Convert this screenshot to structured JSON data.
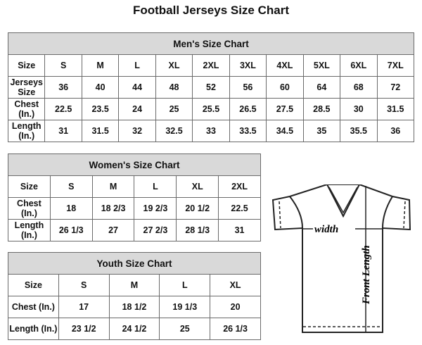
{
  "title": "Football Jerseys Size Chart",
  "men": {
    "caption": "Men's Size Chart",
    "rows": [
      [
        "Size",
        "S",
        "M",
        "L",
        "XL",
        "2XL",
        "3XL",
        "4XL",
        "5XL",
        "6XL",
        "7XL"
      ],
      [
        "Jerseys Size",
        "36",
        "40",
        "44",
        "48",
        "52",
        "56",
        "60",
        "64",
        "68",
        "72"
      ],
      [
        "Chest (In.)",
        "22.5",
        "23.5",
        "24",
        "25",
        "25.5",
        "26.5",
        "27.5",
        "28.5",
        "30",
        "31.5"
      ],
      [
        "Length (In.)",
        "31",
        "31.5",
        "32",
        "32.5",
        "33",
        "33.5",
        "34.5",
        "35",
        "35.5",
        "36"
      ]
    ]
  },
  "women": {
    "caption": "Women's Size Chart",
    "rows": [
      [
        "Size",
        "S",
        "M",
        "L",
        "XL",
        "2XL"
      ],
      [
        "Chest (In.)",
        "18",
        "18 2/3",
        "19 2/3",
        "20 1/2",
        "22.5"
      ],
      [
        "Length (In.)",
        "26 1/3",
        "27",
        "27 2/3",
        "28 1/3",
        "31"
      ]
    ]
  },
  "youth": {
    "caption": "Youth Size Chart",
    "rows": [
      [
        "Size",
        "S",
        "M",
        "L",
        "XL"
      ],
      [
        "Chest (In.)",
        "17",
        "18 1/2",
        "19 1/3",
        "20"
      ],
      [
        "Length (In.)",
        "23 1/2",
        "24 1/2",
        "25",
        "26 1/3"
      ]
    ]
  },
  "diagram": {
    "width_label": "width",
    "length_label": "Front Length"
  }
}
